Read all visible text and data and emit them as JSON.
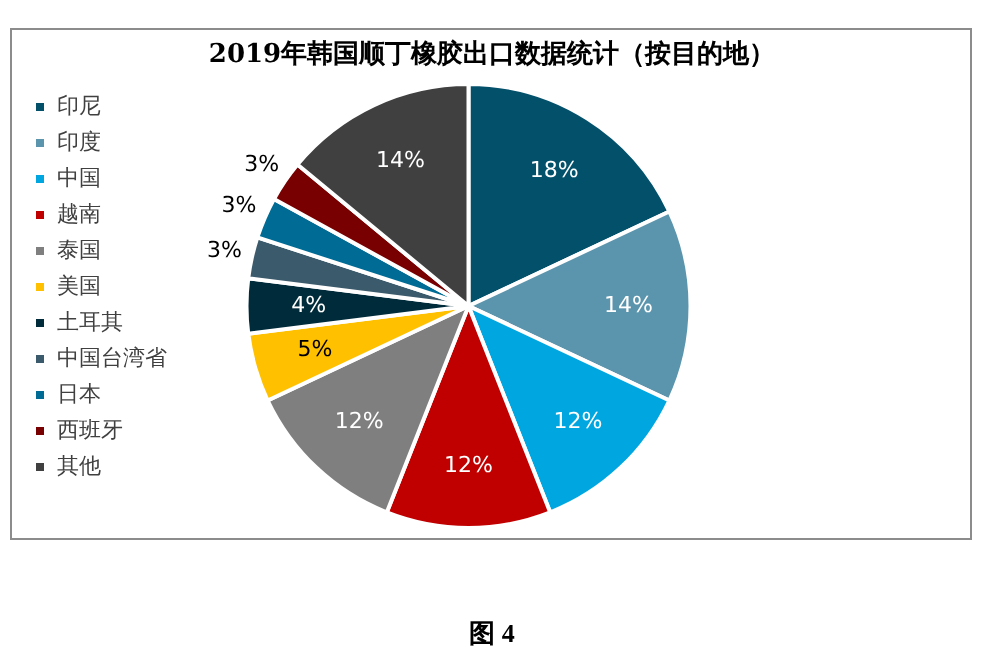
{
  "chart_data": {
    "type": "pie",
    "title": "2019年韩国顺丁橡胶出口数据统计（按目的地）",
    "categories": [
      "印尼",
      "印度",
      "中国",
      "越南",
      "泰国",
      "美国",
      "土耳其",
      "中国台湾省",
      "日本",
      "西班牙",
      "其他"
    ],
    "values": [
      18,
      14,
      12,
      12,
      12,
      5,
      4,
      3,
      3,
      3,
      14
    ],
    "colors": [
      "#03506b",
      "#5b95ad",
      "#00a6e0",
      "#c00000",
      "#7f7f7f",
      "#ffc000",
      "#002b3a",
      "#3b5a6b",
      "#006b94",
      "#780000",
      "#404040"
    ],
    "value_labels": [
      "18%",
      "14%",
      "12%",
      "12%",
      "12%",
      "5%",
      "4%",
      "3%",
      "3%",
      "3%",
      "14%"
    ],
    "legend": "left",
    "annotations": [
      "图 4"
    ]
  }
}
